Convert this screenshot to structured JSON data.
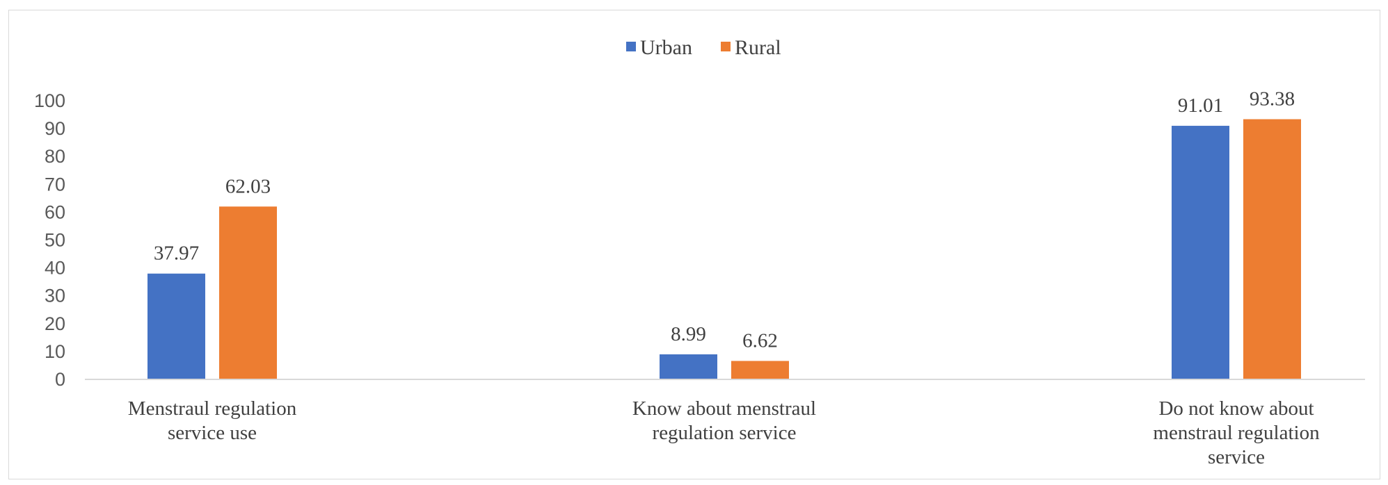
{
  "chart_data": {
    "type": "bar",
    "categories": [
      [
        "Menstraul regulation",
        "service use"
      ],
      [
        "Know about menstraul",
        "regulation service"
      ],
      [
        "Do not know about",
        "menstraul regulation",
        "service"
      ]
    ],
    "series": [
      {
        "name": "Urban",
        "color": "#4472c4",
        "values": [
          37.97,
          8.99,
          91.01
        ]
      },
      {
        "name": "Rural",
        "color": "#ed7d31",
        "values": [
          62.03,
          6.62,
          93.38
        ]
      }
    ],
    "yticks": [
      0,
      10,
      20,
      30,
      40,
      50,
      60,
      70,
      80,
      90,
      100
    ],
    "ylim": [
      0,
      100
    ],
    "legend_position": "top-center",
    "grid": false,
    "axis_color": "#d9d9d9"
  }
}
